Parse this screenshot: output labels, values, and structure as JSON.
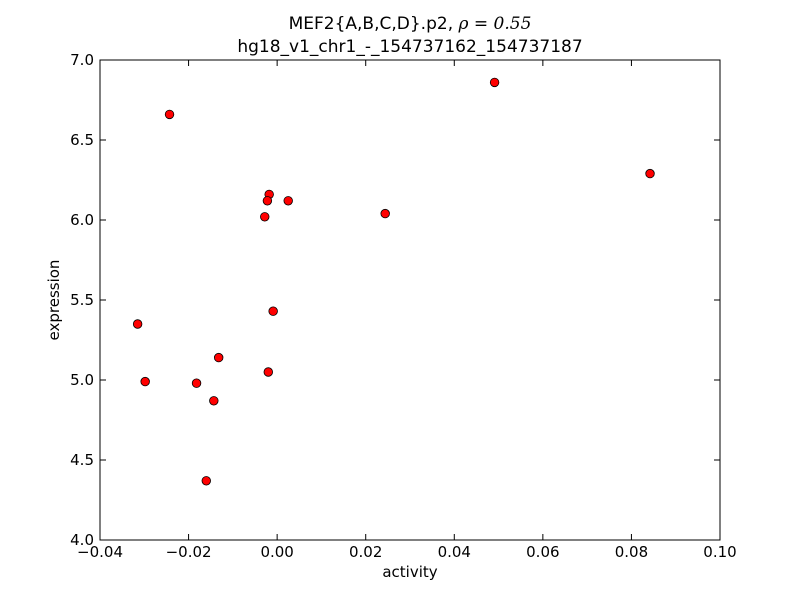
{
  "chart_data": {
    "type": "scatter",
    "title_line1_prefix": "MEF2{A,B,C,D}.p2, ",
    "title_line1_rho": "ρ = 0.55",
    "title_line2": "hg18_v1_chr1_-_154737162_154737187",
    "xlabel": "activity",
    "ylabel": "expression",
    "xlim": [
      -0.04,
      0.1
    ],
    "ylim": [
      4.0,
      7.0
    ],
    "xticks": [
      -0.04,
      -0.02,
      0.0,
      0.02,
      0.04,
      0.06,
      0.08,
      0.1
    ],
    "xtick_labels": [
      "−0.04",
      "−0.02",
      "0.00",
      "0.02",
      "0.04",
      "0.06",
      "0.08",
      "0.10"
    ],
    "yticks": [
      4.0,
      4.5,
      5.0,
      5.5,
      6.0,
      6.5,
      7.0
    ],
    "ytick_labels": [
      "4.0",
      "4.5",
      "5.0",
      "5.5",
      "6.0",
      "6.5",
      "7.0"
    ],
    "grid": false,
    "legend": "none",
    "marker_color": "#ff0000",
    "marker_edge_color": "#000000",
    "points": [
      {
        "x": -0.0243,
        "y": 6.66
      },
      {
        "x": 0.0491,
        "y": 6.86
      },
      {
        "x": 0.0842,
        "y": 6.29
      },
      {
        "x": -0.0018,
        "y": 6.16
      },
      {
        "x": -0.0022,
        "y": 6.12
      },
      {
        "x": 0.0025,
        "y": 6.12
      },
      {
        "x": -0.0028,
        "y": 6.02
      },
      {
        "x": 0.0244,
        "y": 6.04
      },
      {
        "x": -0.0315,
        "y": 5.35
      },
      {
        "x": -0.0009,
        "y": 5.43
      },
      {
        "x": -0.0132,
        "y": 5.14
      },
      {
        "x": -0.002,
        "y": 5.05
      },
      {
        "x": -0.0298,
        "y": 4.99
      },
      {
        "x": -0.0182,
        "y": 4.98
      },
      {
        "x": -0.0143,
        "y": 4.87
      },
      {
        "x": -0.016,
        "y": 4.37
      }
    ]
  }
}
